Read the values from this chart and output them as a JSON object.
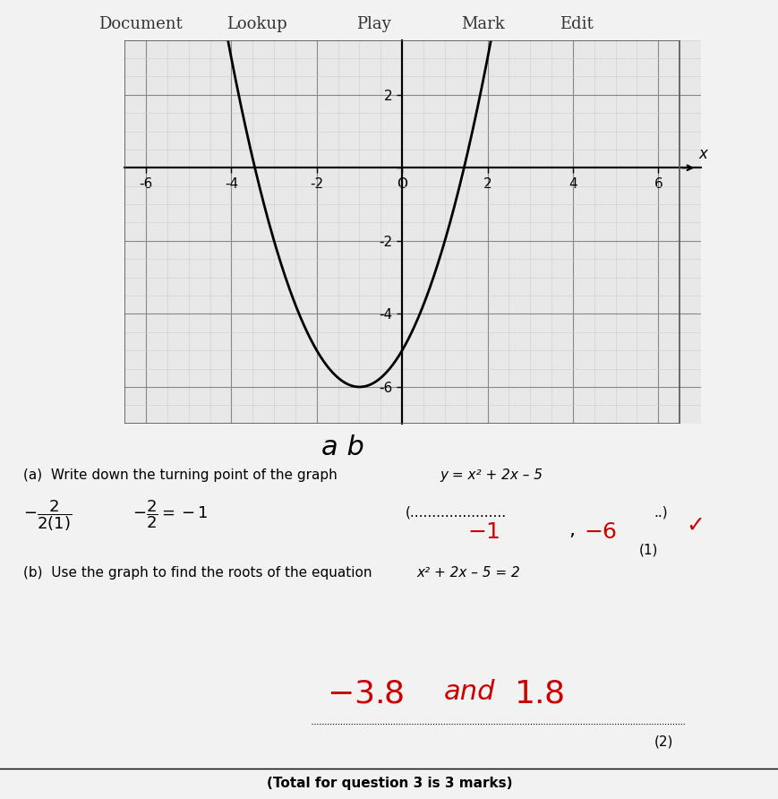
{
  "toolbar_items": [
    "Document",
    "Lookup",
    "Play",
    "Mark",
    "Edit"
  ],
  "graph": {
    "xlim": [
      -6.5,
      7.0
    ],
    "ylim": [
      -7.0,
      3.5
    ],
    "xticks": [
      -6,
      -4,
      -2,
      0,
      2,
      4,
      6
    ],
    "yticks": [
      -6,
      -4,
      -2,
      0,
      2
    ],
    "xlabel": "x",
    "ylabel": "",
    "grid_minor": true,
    "curve_color": "#000000",
    "curve_lw": 2.0,
    "axis_lw": 1.5,
    "grid_color_major": "#888888",
    "grid_color_minor": "#cccccc",
    "background_color": "#e8e8e8"
  },
  "text_items": {
    "toolbar_color": "#333333",
    "toolbar_fontsize": 13,
    "part_a_label": "(a)  Write down the turning point of the graph",
    "part_a_equation": "y = x² + 2x – 5",
    "workings_line1": "          2                  2",
    "workings_line2": "–  ———    –—  = –1",
    "workings_denom1": "2(1)             2",
    "answer_a": "(– 1  ,  – 6)",
    "dotted_line_a": "(.....................  ,  ..................",
    "marks_a": "(1)",
    "part_b_label": "(b)  Use the graph to find the roots of the equation",
    "part_b_equation": "x² + 2x – 5 = 2",
    "answer_b_text": "–3.8  and  1.8",
    "marks_b": "(2)",
    "total_marks": "(Total for question 3 is 3 marks)"
  },
  "handwriting": {
    "working_color": "#000000",
    "answer_color": "#cc0000",
    "ab_label_color": "#000000"
  },
  "page_bg": "#f0f0f0"
}
